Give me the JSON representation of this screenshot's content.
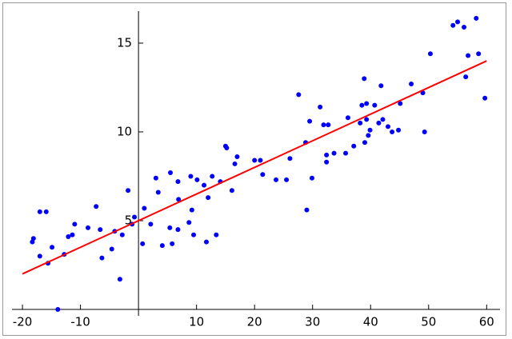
{
  "chart_data": {
    "type": "scatter",
    "xlim": [
      -21.8,
      62.3
    ],
    "ylim": [
      0,
      16.8
    ],
    "xticks": [
      -20,
      -10,
      10,
      20,
      30,
      40,
      50,
      60
    ],
    "yticks": [
      5,
      10,
      15
    ],
    "series": [
      {
        "style": "points",
        "color": "#0000ff",
        "x": [
          -18.3,
          -18.1,
          -17.0,
          -17.0,
          -15.9,
          -15.6,
          -14.9,
          -13.9,
          -12.8,
          -12.1,
          -11.4,
          -11.0,
          -8.7,
          -7.3,
          -6.6,
          -6.3,
          -4.6,
          -4.1,
          -3.2,
          -2.8,
          -1.8,
          -1.1,
          -0.7,
          0.7,
          1.0,
          2.1,
          3.0,
          3.4,
          4.1,
          5.5,
          5.4,
          5.8,
          6.8,
          6.9,
          6.8,
          8.7,
          9.0,
          9.2,
          9.5,
          10.1,
          11.3,
          12.0,
          11.7,
          12.7,
          13.4,
          14.1,
          15.0,
          15.2,
          16.1,
          16.6,
          17.0,
          20.0,
          21.0,
          21.4,
          23.7,
          25.5,
          26.1,
          27.6,
          28.8,
          29.0,
          29.5,
          29.9,
          31.3,
          31.9,
          32.4,
          32.4,
          32.7,
          33.7,
          35.7,
          36.1,
          37.1,
          38.2,
          38.5,
          38.9,
          39.0,
          39.3,
          39.3,
          39.6,
          39.9,
          40.7,
          41.4,
          41.8,
          42.1,
          43.0,
          43.7,
          44.8,
          45.1,
          47.0,
          49.0,
          49.3,
          50.3,
          54.2,
          55.0,
          56.1,
          56.4,
          56.8,
          58.2,
          58.6,
          59.7
        ],
        "values": [
          3.8,
          4.0,
          3.0,
          5.5,
          5.5,
          2.6,
          3.5,
          0.0,
          3.1,
          4.1,
          4.2,
          4.8,
          4.6,
          5.8,
          4.5,
          2.9,
          3.4,
          4.4,
          1.7,
          4.2,
          6.7,
          4.8,
          5.2,
          3.7,
          5.7,
          4.8,
          7.4,
          6.6,
          3.6,
          7.7,
          4.6,
          3.7,
          7.2,
          6.2,
          4.5,
          4.9,
          7.5,
          5.6,
          4.2,
          7.3,
          7.0,
          6.3,
          3.8,
          7.5,
          4.2,
          7.2,
          9.2,
          9.1,
          6.7,
          8.2,
          8.6,
          8.4,
          8.4,
          7.6,
          7.3,
          7.3,
          8.5,
          12.1,
          9.4,
          5.6,
          10.6,
          7.4,
          11.4,
          10.4,
          8.3,
          8.7,
          10.4,
          8.8,
          8.8,
          10.8,
          9.2,
          10.5,
          11.5,
          13.0,
          9.4,
          11.6,
          10.7,
          9.8,
          10.1,
          11.5,
          10.5,
          12.6,
          10.7,
          10.3,
          10.0,
          10.1,
          11.6,
          12.7,
          12.2,
          10.0,
          14.4,
          16.0,
          16.2,
          15.9,
          13.1,
          14.3,
          16.4,
          14.4,
          11.9
        ]
      },
      {
        "style": "line",
        "color": "#ff0000",
        "x": [
          -20,
          60
        ],
        "values": [
          2.0,
          14.0
        ]
      }
    ]
  }
}
